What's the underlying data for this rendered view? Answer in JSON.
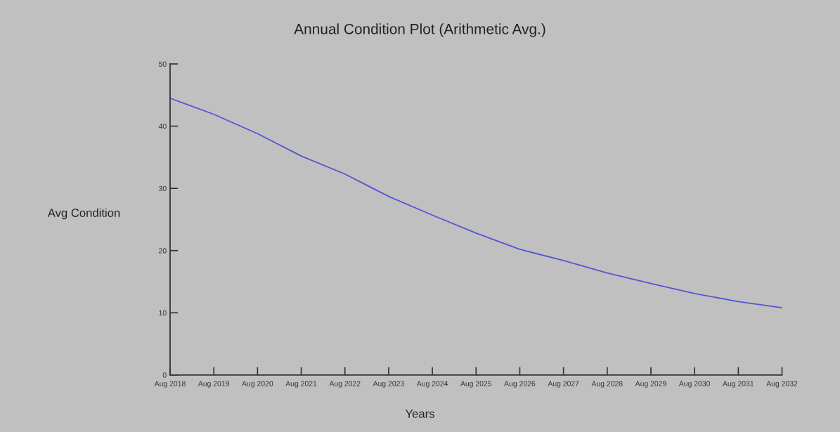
{
  "chart_data": {
    "type": "line",
    "title": "Annual Condition Plot (Arithmetic Avg.)",
    "xlabel": "Years",
    "ylabel": "Avg Condition",
    "categories": [
      "Aug 2018",
      "Aug 2019",
      "Aug 2020",
      "Aug 2021",
      "Aug 2022",
      "Aug 2023",
      "Aug 2024",
      "Aug 2025",
      "Aug 2026",
      "Aug 2027",
      "Aug 2028",
      "Aug 2029",
      "Aug 2030",
      "Aug 2031",
      "Aug 2032"
    ],
    "series": [
      {
        "color": "#5555d5",
        "values": [
          44.5,
          41.9,
          38.8,
          35.2,
          32.3,
          28.7,
          25.7,
          22.8,
          20.2,
          18.4,
          16.4,
          14.7,
          13.1,
          11.8,
          10.8
        ]
      }
    ],
    "ylim": [
      0,
      50
    ],
    "yticks": [
      0,
      10,
      20,
      30,
      40,
      50
    ],
    "grid": false,
    "legend": false
  }
}
